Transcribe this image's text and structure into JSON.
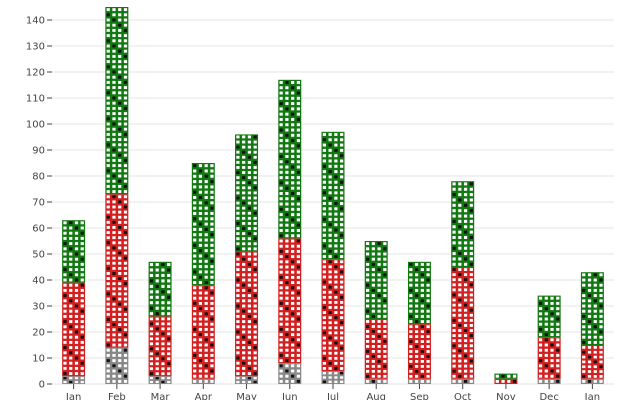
{
  "chart_data": {
    "type": "bar",
    "stacked": true,
    "mark_style": "waffle-squares",
    "categories": [
      "Jan",
      "Feb",
      "Mar",
      "Apr",
      "May",
      "Jun",
      "Jul",
      "Aug",
      "Sep",
      "Oct",
      "Nov",
      "Dec",
      "Jan"
    ],
    "ylim": [
      0,
      145
    ],
    "yticks": [
      0,
      10,
      20,
      30,
      40,
      50,
      60,
      70,
      80,
      90,
      100,
      110,
      120,
      130,
      140
    ],
    "grid": true,
    "series": [
      {
        "color": "#888888",
        "values": [
          3,
          14,
          3,
          2,
          3,
          8,
          5,
          2,
          2,
          2,
          0,
          2,
          2
        ]
      },
      {
        "color": "#d21f1f",
        "values": [
          36,
          59,
          23,
          36,
          48,
          48,
          43,
          23,
          21,
          43,
          2,
          16,
          13
        ]
      },
      {
        "color": "#127812",
        "values": [
          24,
          72,
          21,
          47,
          45,
          61,
          49,
          30,
          24,
          33,
          2,
          16,
          28
        ]
      }
    ]
  }
}
